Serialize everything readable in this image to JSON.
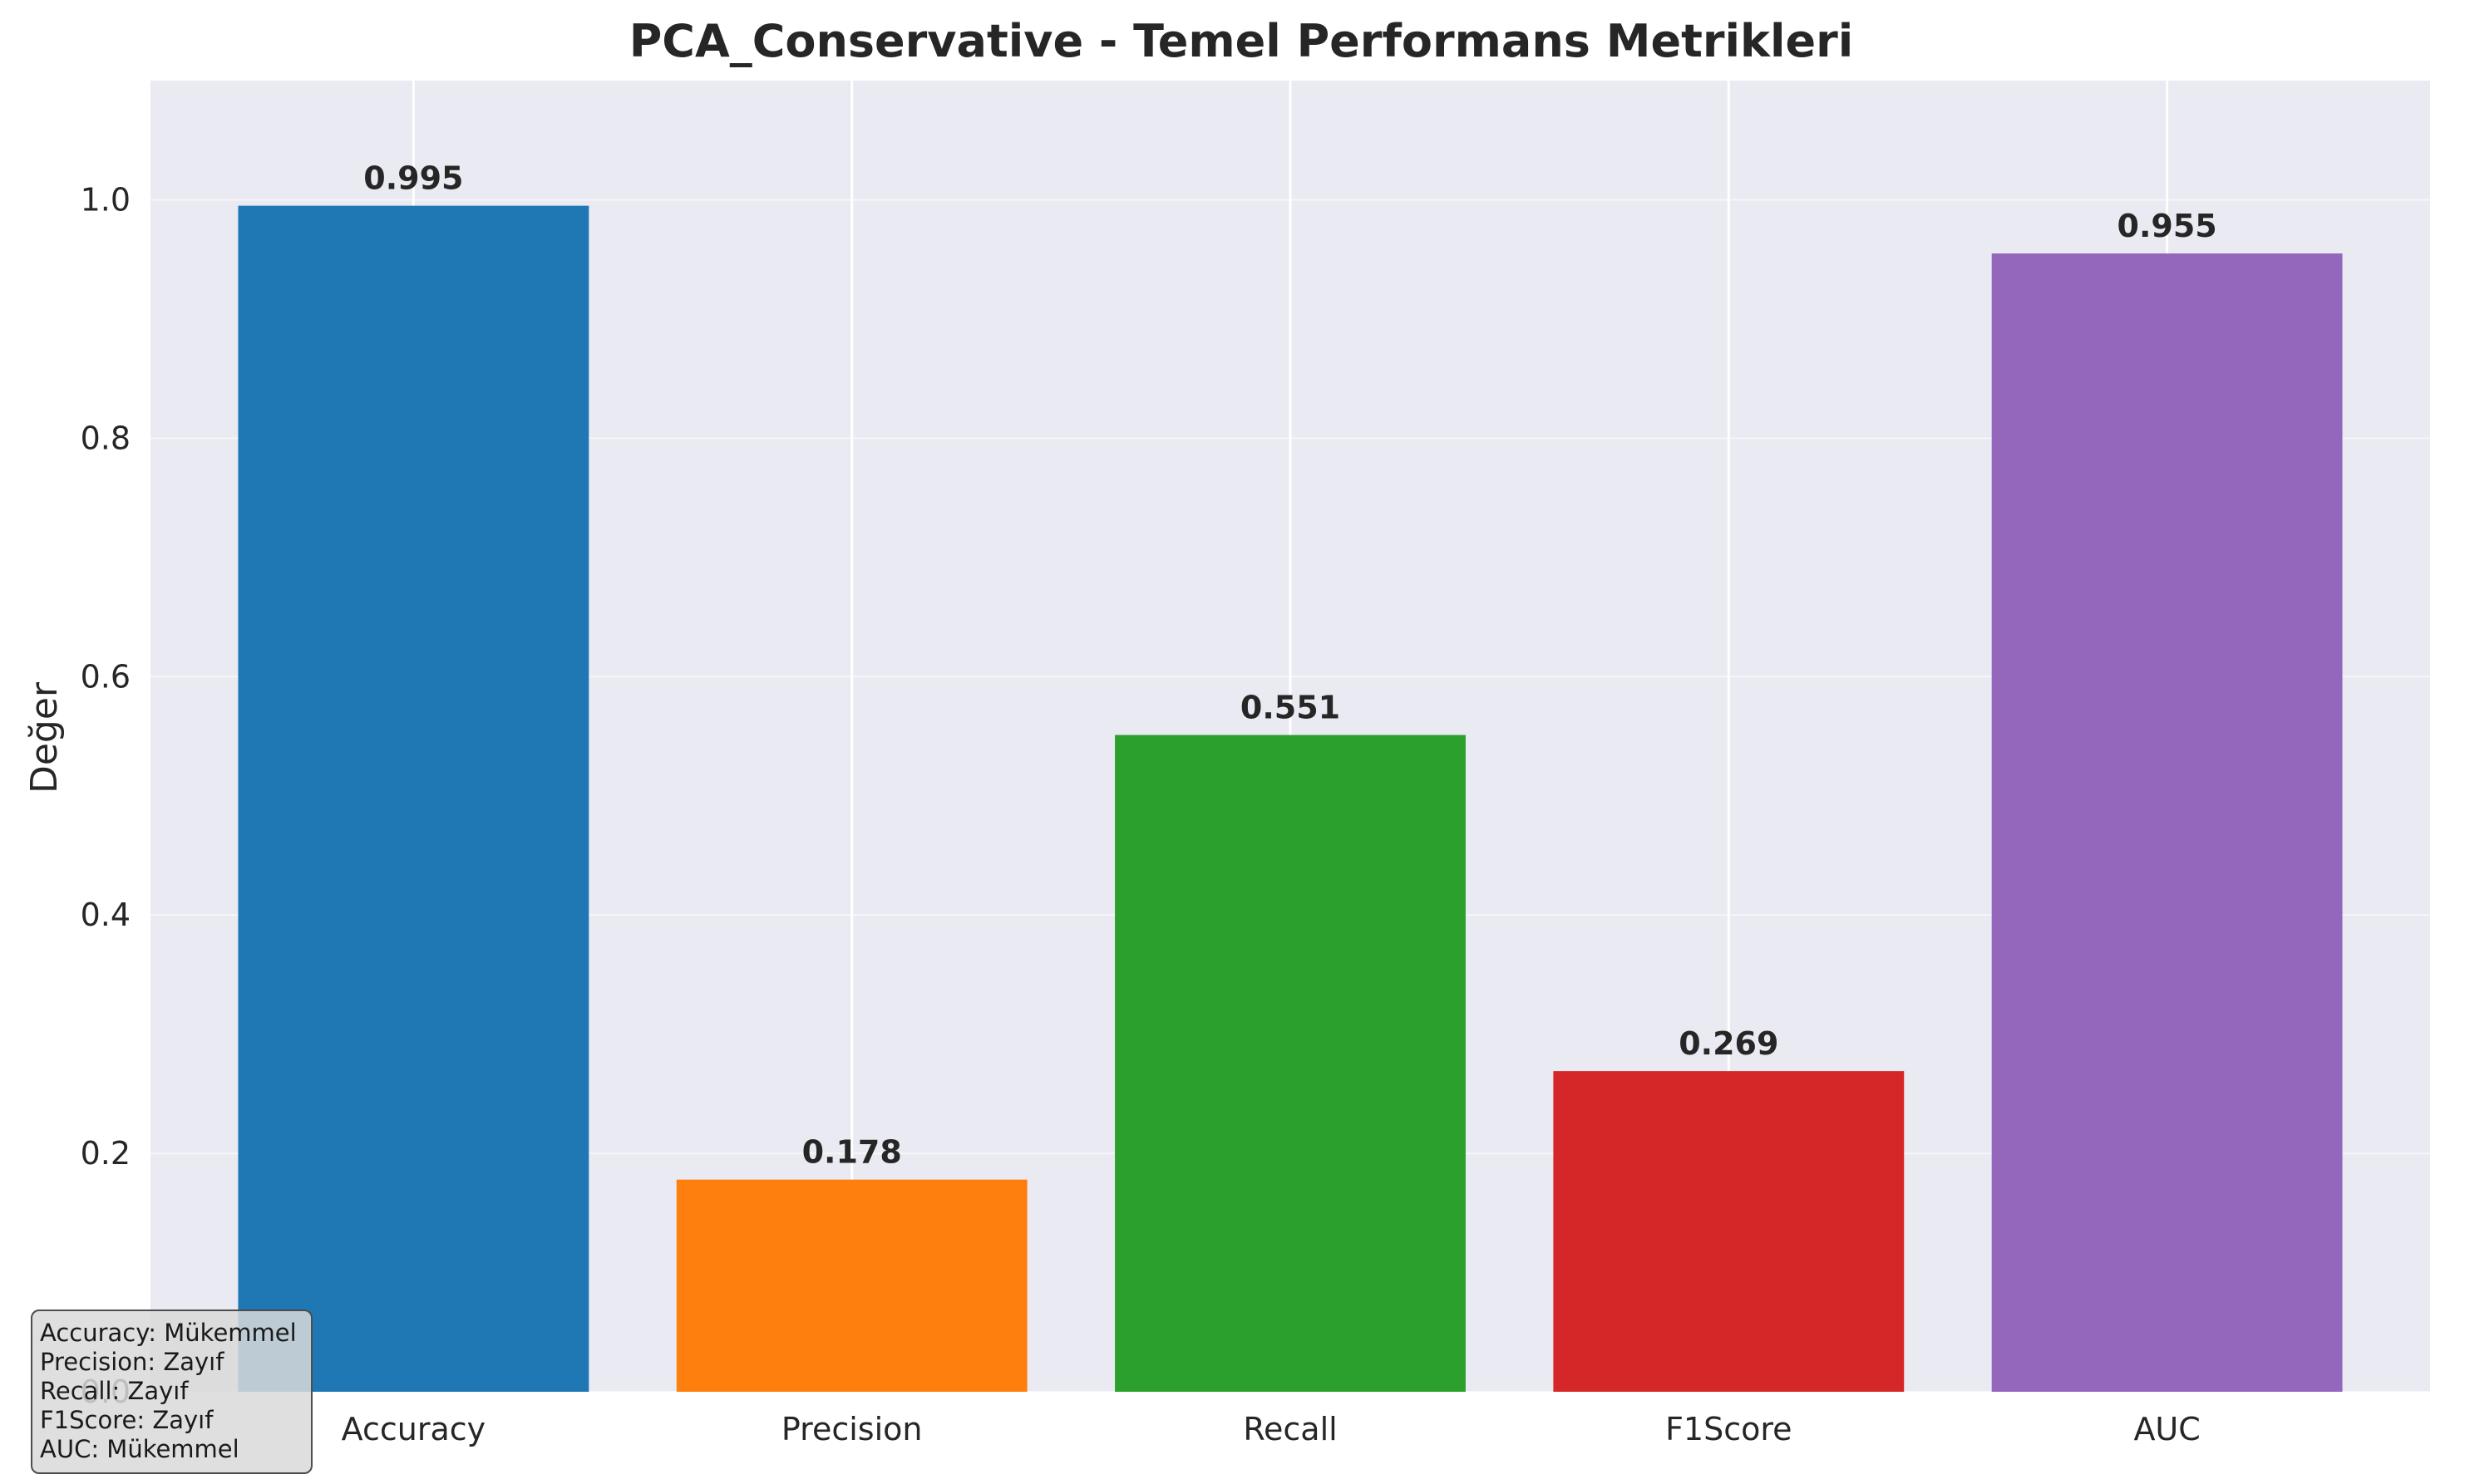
{
  "chart_data": {
    "type": "bar",
    "title": "PCA_Conservative - Temel Performans Metrikleri",
    "xlabel": "",
    "ylabel": "Değer",
    "categories": [
      "Accuracy",
      "Precision",
      "Recall",
      "F1Score",
      "AUC"
    ],
    "values": [
      0.995,
      0.178,
      0.551,
      0.269,
      0.955
    ],
    "value_labels": [
      "0.995",
      "0.178",
      "0.551",
      "0.269",
      "0.955"
    ],
    "colors": [
      "#1f77b4",
      "#ff7f0e",
      "#2ca02c",
      "#d62728",
      "#9467bd"
    ],
    "ylim": [
      0.0,
      1.1
    ],
    "yticks": [
      0.0,
      0.2,
      0.4,
      0.6,
      0.8,
      1.0
    ],
    "ytick_labels": [
      "0.0",
      "0.2",
      "0.4",
      "0.6",
      "0.8",
      "1.0"
    ],
    "grid": true,
    "background_color": "#eaeaf2",
    "annotation": {
      "lines": [
        "Accuracy: Mükemmel",
        "Precision: Zayıf",
        "Recall: Zayıf",
        "F1Score: Zayıf",
        "AUC: Mükemmel"
      ],
      "placement": "bottom-left"
    }
  }
}
